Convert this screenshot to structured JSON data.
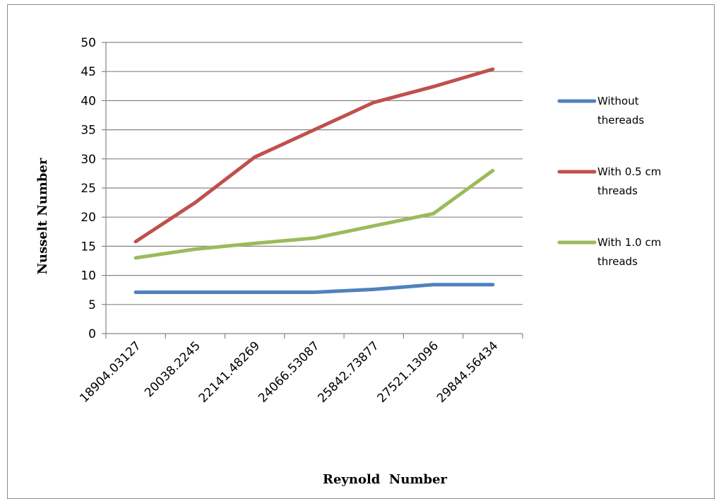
{
  "chart_data": {
    "type": "line",
    "xlabel": "Reynold  Number",
    "ylabel": "Nusselt Number",
    "ylim": [
      0,
      50
    ],
    "yticks": [
      0,
      5,
      10,
      15,
      20,
      25,
      30,
      35,
      40,
      45,
      50
    ],
    "grid": true,
    "legend_position": "right",
    "categories": [
      "18904.03127",
      "20038.2245",
      "22141.48269",
      "24066.53087",
      "25842.73877",
      "27521.13096",
      "29844.56434"
    ],
    "series": [
      {
        "name": [
          "Without",
          "thereads"
        ],
        "color": "#4f81bd",
        "values": [
          7.1,
          7.1,
          7.1,
          7.1,
          7.6,
          8.4,
          8.4
        ]
      },
      {
        "name": [
          "With 0.5 cm",
          "threads"
        ],
        "color": "#c0504d",
        "values": [
          15.8,
          22.5,
          30.3,
          35.0,
          39.7,
          42.4,
          45.4
        ]
      },
      {
        "name": [
          "With 1.0 cm",
          "threads"
        ],
        "color": "#9bbb59",
        "values": [
          13.0,
          14.5,
          15.5,
          16.4,
          18.5,
          20.6,
          28.0
        ]
      }
    ]
  }
}
